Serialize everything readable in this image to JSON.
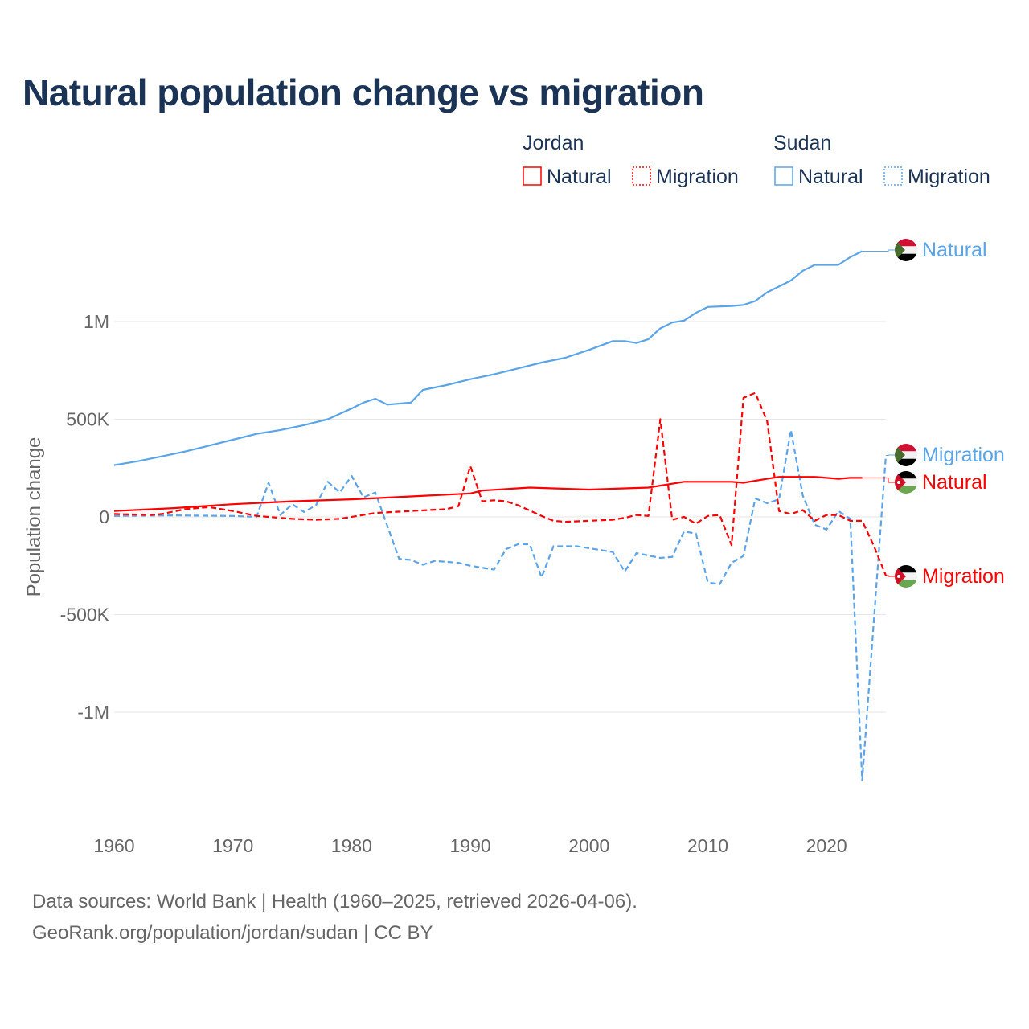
{
  "title": "Natural population change vs migration",
  "footer": {
    "line1": "Data sources: World Bank | Health (1960–2025, retrieved 2026-04-06).",
    "line2": "GeoRank.org/population/jordan/sudan | CC BY"
  },
  "colors": {
    "jordan": "#ff0000",
    "sudan": "#5ba4e8",
    "title": "#1b3354",
    "grid": "#e6e6e6"
  },
  "chart_data": {
    "type": "line",
    "title": "Natural population change vs migration",
    "xlabel": "",
    "ylabel": "Population change",
    "xlim": [
      1960,
      2025
    ],
    "ylim": [
      -1500000,
      1500000
    ],
    "xticks": [
      1960,
      1970,
      1980,
      1990,
      2000,
      2010,
      2020
    ],
    "xtick_labels": [
      "1960",
      "1970",
      "1980",
      "1990",
      "2000",
      "2010",
      "2020"
    ],
    "yticks": [
      1000000,
      500000,
      0,
      -500000,
      -1000000
    ],
    "ytick_labels": [
      "1M",
      "500K",
      "0",
      "-500K",
      "-1M"
    ],
    "grid": true,
    "legend": {
      "placement": "top-right",
      "groups": [
        {
          "name": "Jordan",
          "items": [
            "Natural",
            "Migration"
          ]
        },
        {
          "name": "Sudan",
          "items": [
            "Natural",
            "Migration"
          ]
        }
      ]
    },
    "series": [
      {
        "name": "Sudan Natural",
        "country": "Sudan",
        "kind": "Natural",
        "label": "Natural",
        "style": "solid",
        "x": [
          1960,
          1962,
          1964,
          1966,
          1968,
          1970,
          1972,
          1974,
          1976,
          1978,
          1980,
          1981,
          1982,
          1983,
          1985,
          1986,
          1988,
          1990,
          1992,
          1994,
          1996,
          1998,
          2000,
          2002,
          2003,
          2004,
          2005,
          2006,
          2007,
          2008,
          2009,
          2010,
          2012,
          2013,
          2014,
          2015,
          2017,
          2018,
          2019,
          2021,
          2022,
          2023
        ],
        "y": [
          265000,
          285000,
          310000,
          335000,
          365000,
          395000,
          425000,
          445000,
          470000,
          500000,
          555000,
          585000,
          605000,
          575000,
          585000,
          650000,
          675000,
          705000,
          730000,
          760000,
          790000,
          815000,
          855000,
          900000,
          900000,
          890000,
          910000,
          965000,
          995000,
          1005000,
          1045000,
          1075000,
          1080000,
          1085000,
          1105000,
          1150000,
          1210000,
          1260000,
          1290000,
          1290000,
          1330000,
          1360000
        ]
      },
      {
        "name": "Sudan Migration",
        "country": "Sudan",
        "kind": "Migration",
        "label": "Migration",
        "style": "dashed",
        "x": [
          1960,
          1965,
          1970,
          1972,
          1973,
          1974,
          1975,
          1976,
          1977,
          1978,
          1979,
          1980,
          1981,
          1982,
          1984,
          1985,
          1986,
          1987,
          1989,
          1990,
          1992,
          1993,
          1994,
          1995,
          1996,
          1997,
          1999,
          2002,
          2003,
          2004,
          2006,
          2007,
          2008,
          2009,
          2010,
          2011,
          2012,
          2013,
          2014,
          2015,
          2016,
          2017,
          2018,
          2019,
          2020,
          2021,
          2022,
          2023,
          2025
        ],
        "y": [
          5000,
          8000,
          5000,
          0,
          175000,
          10000,
          65000,
          25000,
          60000,
          180000,
          125000,
          210000,
          100000,
          125000,
          -215000,
          -220000,
          -245000,
          -225000,
          -235000,
          -250000,
          -270000,
          -165000,
          -140000,
          -140000,
          -310000,
          -150000,
          -150000,
          -180000,
          -280000,
          -185000,
          -210000,
          -205000,
          -75000,
          -85000,
          -335000,
          -345000,
          -235000,
          -200000,
          95000,
          70000,
          90000,
          445000,
          110000,
          -40000,
          -65000,
          30000,
          -10000,
          -1350000,
          315000
        ]
      },
      {
        "name": "Jordan Natural",
        "country": "Jordan",
        "kind": "Natural",
        "label": "Natural",
        "style": "solid",
        "x": [
          1960,
          1965,
          1970,
          1975,
          1980,
          1985,
          1990,
          1991,
          1995,
          2000,
          2005,
          2007,
          2008,
          2012,
          2013,
          2015,
          2016,
          2019,
          2021,
          2022,
          2023
        ],
        "y": [
          30000,
          45000,
          65000,
          80000,
          90000,
          105000,
          120000,
          135000,
          150000,
          140000,
          150000,
          170000,
          180000,
          180000,
          175000,
          195000,
          205000,
          205000,
          195000,
          200000,
          200000
        ]
      },
      {
        "name": "Jordan Migration",
        "country": "Jordan",
        "kind": "Migration",
        "label": "Migration",
        "style": "dashed",
        "x": [
          1960,
          1963,
          1964,
          1966,
          1968,
          1970,
          1972,
          1975,
          1977,
          1979,
          1982,
          1985,
          1988,
          1989,
          1990,
          1991,
          1992,
          1993,
          1994,
          1996,
          1997,
          1998,
          2002,
          2003,
          2004,
          2005,
          2006,
          2007,
          2008,
          2009,
          2010,
          2011,
          2012,
          2013,
          2014,
          2015,
          2016,
          2017,
          2018,
          2019,
          2020,
          2021,
          2022,
          2023,
          2024,
          2025
        ],
        "y": [
          15000,
          10000,
          15000,
          40000,
          50000,
          30000,
          5000,
          -10000,
          -15000,
          -10000,
          20000,
          30000,
          40000,
          55000,
          260000,
          80000,
          85000,
          80000,
          60000,
          5000,
          -20000,
          -25000,
          -15000,
          -5000,
          10000,
          5000,
          500000,
          -15000,
          0,
          -35000,
          5000,
          10000,
          -145000,
          610000,
          635000,
          490000,
          30000,
          15000,
          35000,
          -20000,
          10000,
          10000,
          -20000,
          -20000,
          -150000,
          -300000
        ]
      }
    ]
  }
}
